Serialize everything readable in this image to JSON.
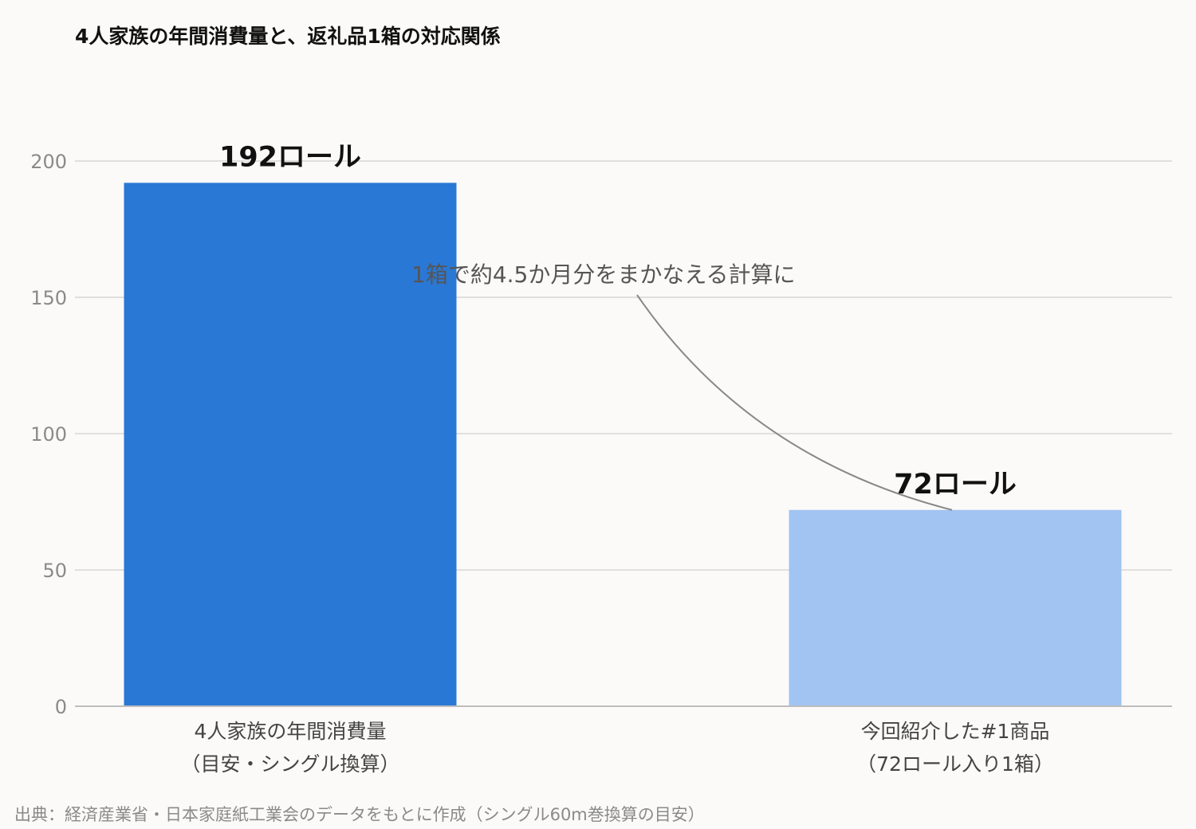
{
  "chart_data": {
    "type": "bar",
    "title": "4人家族の年間消費量と、返礼品1箱の対応関係",
    "categories": [
      [
        "4人家族の年間消費量",
        "（目安・シングル換算）"
      ],
      [
        "今回紹介した#1商品",
        "（72ロール入り1箱）"
      ]
    ],
    "values": [
      192,
      72
    ],
    "value_labels": [
      "192ロール",
      "72ロール"
    ],
    "colors": [
      "#2a78d5",
      "#a1c4f2"
    ],
    "ylim": [
      0,
      215
    ],
    "yticks": [
      0,
      50,
      100,
      150,
      200
    ],
    "grid": true,
    "annotation": "1箱で約4.5か月分をまかなえる計算に",
    "source": "出典：経済産業省・日本家庭紙工業会のデータをもとに作成（シングル60m巻換算の目安）"
  }
}
